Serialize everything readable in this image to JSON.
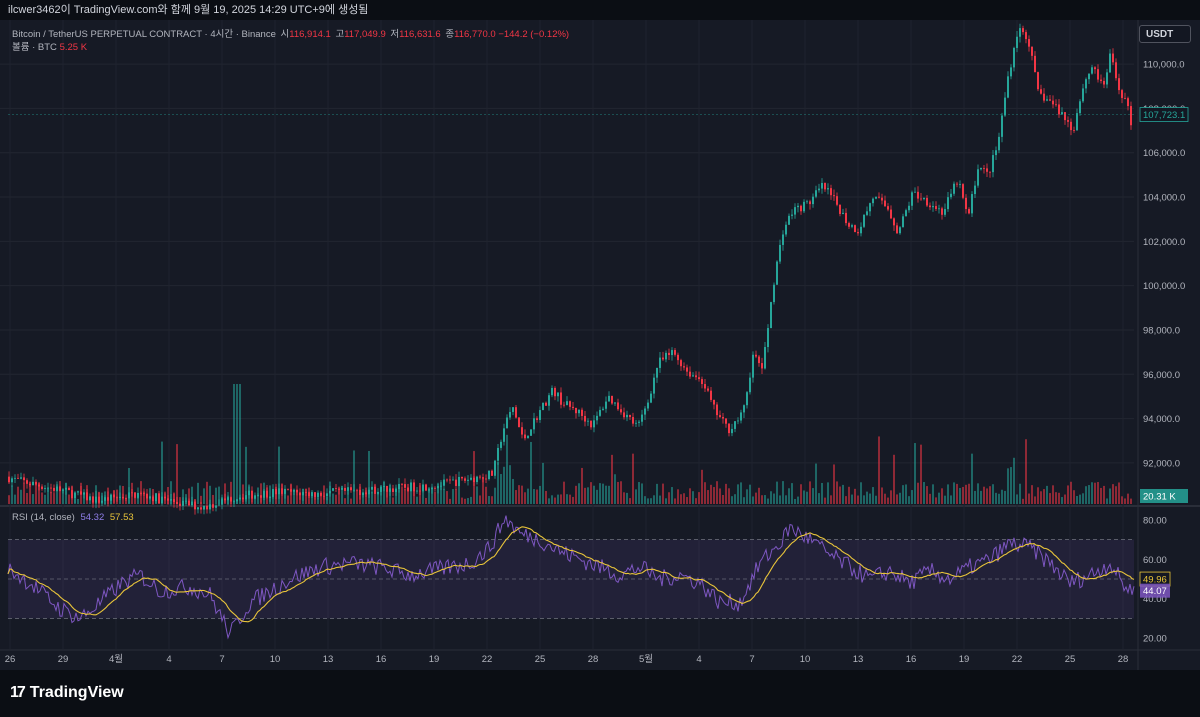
{
  "header": {
    "caption": "ilcwer3462이 TradingView.com와 함께 9월 19, 2025 14:29 UTC+9에 생성됨"
  },
  "legend": {
    "symbol": "Bitcoin / TetherUS PERPETUAL CONTRACT · 4시간 · Binance",
    "open_label": "시",
    "open": "116,914.1",
    "high_label": "고",
    "high": "117,049.9",
    "low_label": "저",
    "low": "116,631.6",
    "close_label": "종",
    "close": "116,770.0",
    "change": "−144.2 (−0.12%)",
    "volume_label": "볼륨 · BTC",
    "volume": "5.25 K"
  },
  "rsi_legend": {
    "label": "RSI (14, close)",
    "rsi": "54.32",
    "ma": "57.53"
  },
  "currency_button": "USDT",
  "brand": {
    "logo_glyph": "17",
    "name": "TradingView"
  },
  "colors": {
    "up": "#26a69a",
    "down": "#f23645",
    "rsi_line": "#7e57c2",
    "rsi_ma": "#e8c43a",
    "bg": "#161a25"
  },
  "chart_data": [
    {
      "type": "candlestick",
      "x_ticks": [
        "26",
        "29",
        "4월",
        "4",
        "7",
        "10",
        "13",
        "16",
        "19",
        "22",
        "25",
        "28",
        "5월",
        "4",
        "7",
        "10",
        "13",
        "16",
        "19",
        "22",
        "25",
        "28"
      ],
      "y_ticks": [
        "92,000.0",
        "94,000.0",
        "96,000.0",
        "98,000.0",
        "100,000.0",
        "102,000.0",
        "104,000.0",
        "106,000.0",
        "108,000.0",
        "110,000.0"
      ],
      "ylim": [
        90100,
        111900
      ],
      "last_price": "107,723.1",
      "volume_last": "20.31 K",
      "anchors": [
        [
          0,
          91500
        ],
        [
          20,
          91200
        ],
        [
          60,
          90800
        ],
        [
          100,
          90300
        ],
        [
          140,
          90600
        ],
        [
          180,
          90200
        ],
        [
          205,
          90000
        ],
        [
          240,
          90500
        ],
        [
          280,
          90700
        ],
        [
          320,
          90600
        ],
        [
          380,
          90800
        ],
        [
          440,
          91000
        ],
        [
          495,
          91500
        ],
        [
          505,
          93500
        ],
        [
          515,
          94500
        ],
        [
          525,
          93000
        ],
        [
          540,
          94200
        ],
        [
          555,
          95300
        ],
        [
          565,
          94700
        ],
        [
          580,
          94300
        ],
        [
          595,
          93700
        ],
        [
          610,
          95000
        ],
        [
          625,
          94300
        ],
        [
          640,
          93600
        ],
        [
          650,
          94800
        ],
        [
          660,
          96500
        ],
        [
          675,
          97000
        ],
        [
          690,
          96100
        ],
        [
          705,
          95700
        ],
        [
          715,
          94500
        ],
        [
          730,
          93500
        ],
        [
          745,
          94200
        ],
        [
          755,
          96800
        ],
        [
          765,
          96300
        ],
        [
          775,
          100000
        ],
        [
          785,
          102500
        ],
        [
          795,
          103400
        ],
        [
          810,
          103700
        ],
        [
          825,
          104500
        ],
        [
          840,
          103600
        ],
        [
          850,
          102800
        ],
        [
          860,
          102500
        ],
        [
          875,
          104000
        ],
        [
          890,
          103500
        ],
        [
          900,
          102400
        ],
        [
          915,
          104200
        ],
        [
          930,
          103800
        ],
        [
          945,
          103300
        ],
        [
          960,
          104800
        ],
        [
          970,
          103000
        ],
        [
          980,
          105400
        ],
        [
          990,
          105000
        ],
        [
          1000,
          106400
        ],
        [
          1010,
          109400
        ],
        [
          1020,
          111600
        ],
        [
          1030,
          111200
        ],
        [
          1040,
          108700
        ],
        [
          1055,
          108200
        ],
        [
          1065,
          107700
        ],
        [
          1075,
          107000
        ],
        [
          1085,
          109000
        ],
        [
          1095,
          110000
        ],
        [
          1105,
          108800
        ],
        [
          1112,
          110400
        ],
        [
          1120,
          109000
        ],
        [
          1128,
          108300
        ],
        [
          1134,
          107200
        ]
      ]
    },
    {
      "type": "line",
      "name": "RSI (14, close)",
      "y_ticks": [
        "20.00",
        "40.00",
        "60.00",
        "80.00"
      ],
      "ylim": [
        15,
        86
      ],
      "levels": [
        30,
        50,
        70
      ],
      "rsi_value": "44.07",
      "ma_value": "49.96",
      "anchors": [
        [
          0,
          58
        ],
        [
          30,
          48
        ],
        [
          60,
          35
        ],
        [
          80,
          30
        ],
        [
          100,
          38
        ],
        [
          120,
          47
        ],
        [
          140,
          52
        ],
        [
          160,
          44
        ],
        [
          190,
          46
        ],
        [
          210,
          42
        ],
        [
          230,
          22
        ],
        [
          250,
          38
        ],
        [
          270,
          44
        ],
        [
          290,
          50
        ],
        [
          320,
          56
        ],
        [
          350,
          58
        ],
        [
          380,
          56
        ],
        [
          410,
          52
        ],
        [
          440,
          55
        ],
        [
          470,
          58
        ],
        [
          490,
          66
        ],
        [
          505,
          81
        ],
        [
          520,
          73
        ],
        [
          540,
          70
        ],
        [
          560,
          64
        ],
        [
          580,
          60
        ],
        [
          600,
          56
        ],
        [
          620,
          52
        ],
        [
          640,
          56
        ],
        [
          660,
          50
        ],
        [
          680,
          52
        ],
        [
          700,
          48
        ],
        [
          720,
          38
        ],
        [
          740,
          38
        ],
        [
          760,
          58
        ],
        [
          780,
          68
        ],
        [
          790,
          76
        ],
        [
          810,
          70
        ],
        [
          830,
          62
        ],
        [
          850,
          56
        ],
        [
          870,
          50
        ],
        [
          890,
          54
        ],
        [
          910,
          48
        ],
        [
          930,
          54
        ],
        [
          950,
          50
        ],
        [
          970,
          56
        ],
        [
          990,
          60
        ],
        [
          1010,
          68
        ],
        [
          1030,
          66
        ],
        [
          1050,
          58
        ],
        [
          1070,
          48
        ],
        [
          1090,
          52
        ],
        [
          1110,
          58
        ],
        [
          1125,
          46
        ],
        [
          1134,
          44
        ]
      ]
    }
  ]
}
